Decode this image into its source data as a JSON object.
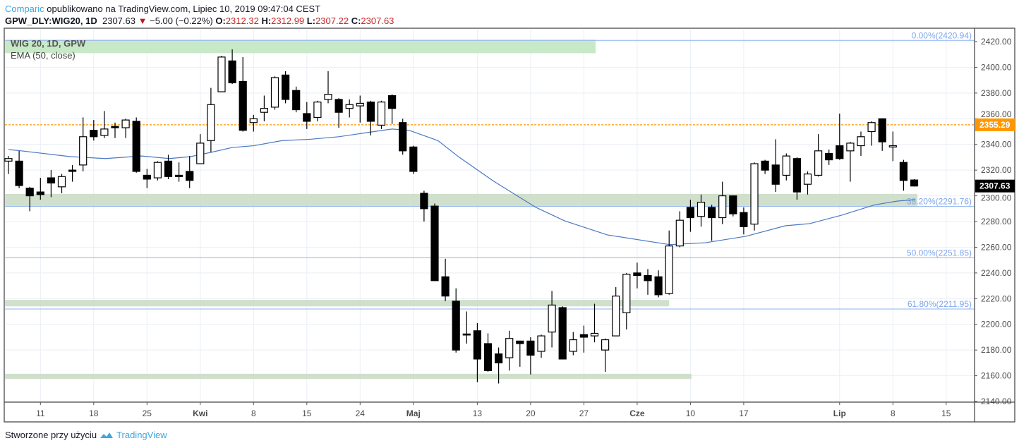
{
  "header": {
    "brand": "Comparic",
    "published": "opublikowano na TradingView.com, Lipiec 10, 2019 09:47:04 CEST",
    "symbol": "GPW_DLY:WIG20, 1D",
    "last": "2307.63",
    "change": "−5.00 (−0.22%)",
    "o_label": "O:",
    "o": "2312.32",
    "h_label": "H:",
    "h": "2312.99",
    "l_label": "L:",
    "l": "2307.22",
    "c_label": "C:",
    "c": "2307.63"
  },
  "legend": {
    "series": "WIG 20, 1D, GPW",
    "indicator": "EMA (50, close)"
  },
  "footer": {
    "made_with": "Stworzone przy użyciu",
    "brand": "TradingView"
  },
  "colors": {
    "up_fill": "#ffffff",
    "down_fill": "#000000",
    "ema": "#4a78c2",
    "fib": "#8fb2ef",
    "orange": "#ff9800",
    "zone_top": "#c5e8c4",
    "zone": "#c8dac3"
  },
  "chart_data": {
    "type": "candlestick",
    "title": "WIG 20, 1D, GPW",
    "ylim": [
      2140,
      2420
    ],
    "y_ticks": [
      "2420.00",
      "2400.00",
      "2380.00",
      "2360.00",
      "2340.00",
      "2320.00",
      "2300.00",
      "2280.00",
      "2260.00",
      "2240.00",
      "2220.00",
      "2200.00",
      "2180.00",
      "2160.00",
      "2140.00"
    ],
    "x_ticks": [
      {
        "label": "11",
        "index": 3
      },
      {
        "label": "18",
        "index": 8
      },
      {
        "label": "25",
        "index": 13
      },
      {
        "label": "Kwi",
        "index": 18
      },
      {
        "label": "8",
        "index": 23
      },
      {
        "label": "15",
        "index": 28
      },
      {
        "label": "24",
        "index": 33
      },
      {
        "label": "Maj",
        "index": 38
      },
      {
        "label": "13",
        "index": 44
      },
      {
        "label": "20",
        "index": 49
      },
      {
        "label": "27",
        "index": 54
      },
      {
        "label": "Cze",
        "index": 59
      },
      {
        "label": "10",
        "index": 64
      },
      {
        "label": "17",
        "index": 69
      },
      {
        "label": "Lip",
        "index": 78
      },
      {
        "label": "8",
        "index": 83
      },
      {
        "label": "15",
        "index": 88
      }
    ],
    "ohlc": [
      [
        2327,
        2331,
        2317,
        2329
      ],
      [
        2327,
        2335,
        2306,
        2308
      ],
      [
        2306,
        2307,
        2288,
        2300
      ],
      [
        2303,
        2314,
        2297,
        2301
      ],
      [
        2314,
        2320,
        2299,
        2310
      ],
      [
        2307,
        2317,
        2302,
        2315
      ],
      [
        2320,
        2324,
        2311,
        2319
      ],
      [
        2324,
        2361,
        2319,
        2346
      ],
      [
        2351,
        2359,
        2343,
        2346
      ],
      [
        2347,
        2366,
        2345,
        2352
      ],
      [
        2354,
        2357,
        2345,
        2353
      ],
      [
        2353,
        2360,
        2345,
        2359
      ],
      [
        2358,
        2361,
        2318,
        2319
      ],
      [
        2316,
        2321,
        2306,
        2313
      ],
      [
        2314,
        2327,
        2312,
        2326
      ],
      [
        2327,
        2332,
        2313,
        2315
      ],
      [
        2316,
        2326,
        2311,
        2315
      ],
      [
        2319,
        2331,
        2306,
        2312
      ],
      [
        2325,
        2348,
        2325,
        2341
      ],
      [
        2343,
        2384,
        2334,
        2371
      ],
      [
        2381,
        2409,
        2381,
        2408
      ],
      [
        2405,
        2414,
        2387,
        2388
      ],
      [
        2389,
        2408,
        2350,
        2351
      ],
      [
        2357,
        2363,
        2350,
        2360
      ],
      [
        2365,
        2378,
        2358,
        2368
      ],
      [
        2369,
        2393,
        2367,
        2392
      ],
      [
        2394,
        2397,
        2372,
        2375
      ],
      [
        2382,
        2385,
        2365,
        2367
      ],
      [
        2364,
        2373,
        2352,
        2358
      ],
      [
        2361,
        2374,
        2358,
        2373
      ],
      [
        2375,
        2397,
        2372,
        2379
      ],
      [
        2375,
        2376,
        2353,
        2365
      ],
      [
        2368,
        2375,
        2361,
        2371
      ],
      [
        2370,
        2378,
        2357,
        2372
      ],
      [
        2373,
        2374,
        2347,
        2358
      ],
      [
        2355,
        2374,
        2352,
        2373
      ],
      [
        2378,
        2379,
        2356,
        2368
      ],
      [
        2357,
        2360,
        2332,
        2335
      ],
      [
        2338,
        2339,
        2317,
        2319
      ],
      [
        2302,
        2304,
        2280,
        2290
      ],
      [
        2292,
        2294,
        2234,
        2234
      ],
      [
        2237,
        2251,
        2218,
        2222
      ],
      [
        2218,
        2228,
        2178,
        2180
      ],
      [
        2192.5,
        2210,
        2185,
        2192
      ],
      [
        2195,
        2201,
        2155,
        2173
      ],
      [
        2185,
        2193,
        2163,
        2164
      ],
      [
        2177,
        2182,
        2154,
        2170
      ],
      [
        2174,
        2195,
        2164,
        2189
      ],
      [
        2187,
        2187,
        2167,
        2185
      ],
      [
        2187,
        2190,
        2161,
        2176
      ],
      [
        2179,
        2192,
        2174,
        2191
      ],
      [
        2194,
        2226,
        2182,
        2215
      ],
      [
        2213,
        2214,
        2173,
        2173
      ],
      [
        2179,
        2194,
        2176,
        2188
      ],
      [
        2192,
        2199,
        2178,
        2190
      ],
      [
        2191,
        2216,
        2186,
        2193
      ],
      [
        2180,
        2189,
        2163,
        2188
      ],
      [
        2191,
        2229,
        2191,
        2222
      ],
      [
        2209,
        2240,
        2196,
        2239
      ],
      [
        2240,
        2248,
        2228,
        2238
      ],
      [
        2238,
        2243,
        2223,
        2234
      ],
      [
        2237,
        2242,
        2221,
        2223
      ],
      [
        2224,
        2273,
        2223,
        2261
      ],
      [
        2261,
        2288,
        2260,
        2281
      ],
      [
        2291,
        2297,
        2272,
        2283
      ],
      [
        2284,
        2301,
        2276,
        2295
      ],
      [
        2291,
        2293,
        2265,
        2283
      ],
      [
        2283,
        2311,
        2278,
        2300
      ],
      [
        2300,
        2300,
        2284,
        2286
      ],
      [
        2287,
        2291,
        2270,
        2276
      ],
      [
        2278,
        2326,
        2273,
        2325
      ],
      [
        2327,
        2328,
        2317,
        2320
      ],
      [
        2324,
        2344,
        2303,
        2309
      ],
      [
        2316,
        2333,
        2312,
        2331
      ],
      [
        2329,
        2330,
        2297,
        2303
      ],
      [
        2309,
        2319,
        2301,
        2317
      ],
      [
        2316,
        2348,
        2315,
        2335
      ],
      [
        2333,
        2336,
        2324,
        2328
      ],
      [
        2339,
        2364,
        2328,
        2329
      ],
      [
        2335,
        2342,
        2311,
        2341
      ],
      [
        2339,
        2350,
        2331,
        2346
      ],
      [
        2350,
        2358,
        2339,
        2357
      ],
      [
        2360,
        2360,
        2335,
        2342
      ],
      [
        2338,
        2350,
        2327,
        2339
      ],
      [
        2326,
        2328,
        2304,
        2312
      ],
      [
        2312.32,
        2312.99,
        2307.22,
        2307.63
      ]
    ],
    "ema50": [
      [
        0,
        2336
      ],
      [
        1.2,
        2335
      ],
      [
        5.8,
        2330.5
      ],
      [
        9.1,
        2329
      ],
      [
        12.5,
        2331
      ],
      [
        15.1,
        2329
      ],
      [
        17.1,
        2330.5
      ],
      [
        19.1,
        2334
      ],
      [
        21,
        2337.6
      ],
      [
        23,
        2339
      ],
      [
        25.7,
        2343
      ],
      [
        28.3,
        2344
      ],
      [
        31,
        2346
      ],
      [
        34.3,
        2350
      ],
      [
        36,
        2352
      ],
      [
        37.6,
        2351
      ],
      [
        40.3,
        2343
      ],
      [
        42.3,
        2330
      ],
      [
        45.6,
        2311
      ],
      [
        49.5,
        2291
      ],
      [
        52.2,
        2280.5
      ],
      [
        56.2,
        2269.6
      ],
      [
        62.1,
        2262
      ],
      [
        65.4,
        2263.5
      ],
      [
        69.2,
        2268.5
      ],
      [
        72.9,
        2276.7
      ],
      [
        75.2,
        2278.4
      ],
      [
        78.2,
        2285
      ],
      [
        81.3,
        2293
      ],
      [
        83.5,
        2296
      ],
      [
        85.1,
        2297
      ]
    ],
    "zones": [
      {
        "from": 2411,
        "to": 2421.5,
        "start": -0.3,
        "end": 55.1,
        "style": "top"
      },
      {
        "from": 2292,
        "to": 2301.5,
        "start": -0.3,
        "end": 85.3,
        "style": "zone"
      },
      {
        "from": 2214,
        "to": 2219,
        "start": -0.3,
        "end": 62,
        "style": "zone"
      },
      {
        "from": 2157.5,
        "to": 2161.5,
        "start": -0.3,
        "end": 64.1,
        "style": "zone"
      }
    ],
    "fib_levels": [
      {
        "label": "0.00%(2420.94)",
        "value": 2420.94
      },
      {
        "label": "38.20%(2291.76)",
        "value": 2291.76
      },
      {
        "label": "50.00%(2251.85)",
        "value": 2251.85
      },
      {
        "label": "61.80%(2211.95)",
        "value": 2211.95
      }
    ],
    "hline": {
      "value": 2355.29,
      "label": "2355.29"
    },
    "last_price": {
      "value": 2307.63,
      "label": "2307.63"
    }
  }
}
